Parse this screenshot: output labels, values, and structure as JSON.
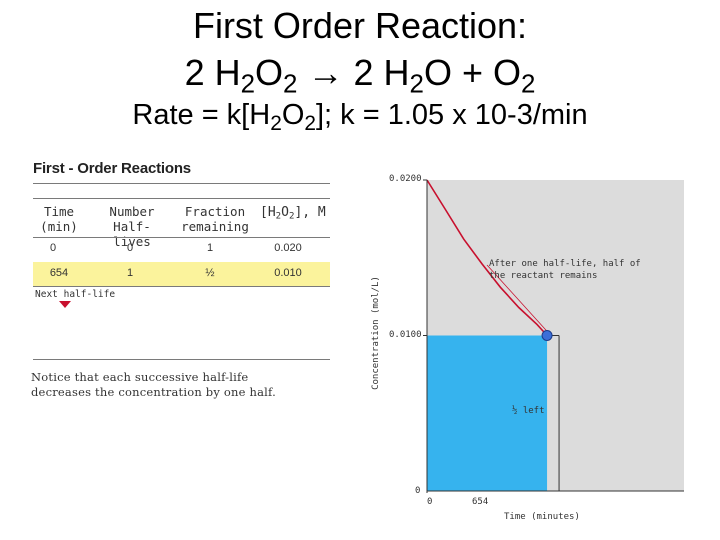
{
  "title": {
    "line1": "First Order Reaction:",
    "eq_a": "2 H",
    "eq_a_sub1": "2",
    "eq_b": "O",
    "eq_b_sub": "2",
    "eq_arrow": "→",
    "eq_c": "2 H",
    "eq_c_sub": "2",
    "eq_d": "O + O",
    "eq_d_sub": "2",
    "rate_a": "Rate = k[H",
    "rate_sub1": "2",
    "rate_b": "O",
    "rate_sub2": "2",
    "rate_c": "];  k = 1.05 x 10-3/min"
  },
  "table_panel": {
    "title": "First - Order Reactions",
    "headers": {
      "time": [
        "Time",
        "(min)"
      ],
      "half_lives": [
        "Number",
        "Half-lives"
      ],
      "fraction": [
        "Fraction",
        "remaining"
      ],
      "conc_a": "[H",
      "conc_sub1": "2",
      "conc_b": "O",
      "conc_sub2": "2",
      "conc_c": "], M"
    },
    "rows": [
      {
        "time": "0",
        "half_lives": "0",
        "fraction": "1",
        "conc": "0.020"
      },
      {
        "time": "654",
        "half_lives": "1",
        "fraction": "½",
        "conc": "0.010"
      }
    ],
    "next_label": "Next half-life",
    "notice": [
      "Notice that each successive half-life",
      "decreases the concentration by one half."
    ]
  },
  "chart_data": {
    "type": "line",
    "ylabel": "Concentration (mol/L)",
    "xlabel": "Time (minutes)",
    "y_ticks": [
      "0.0200",
      "0.0100",
      "0"
    ],
    "x_ticks": [
      "0",
      "654"
    ],
    "ylim": [
      0,
      0.02
    ],
    "xlim": [
      0,
      1400
    ],
    "series": [
      {
        "x": [
          0,
          100,
          200,
          300,
          400,
          500,
          600,
          654
        ],
        "y": [
          0.02,
          0.0181,
          0.0162,
          0.0146,
          0.0131,
          0.0118,
          0.0107,
          0.01
        ]
      }
    ],
    "highlight_bar": {
      "x_end": 654,
      "y": 0.01
    },
    "point": {
      "x": 654,
      "y": 0.01
    },
    "annotation": [
      "After one half-life, half of",
      "the reactant remains"
    ],
    "bracket_label": "½ left",
    "colors": {
      "plot_bg": "#dcdcdc",
      "bar": "#36b3ee",
      "curve": "#c8102e",
      "marker": "#3b6fd8"
    }
  }
}
